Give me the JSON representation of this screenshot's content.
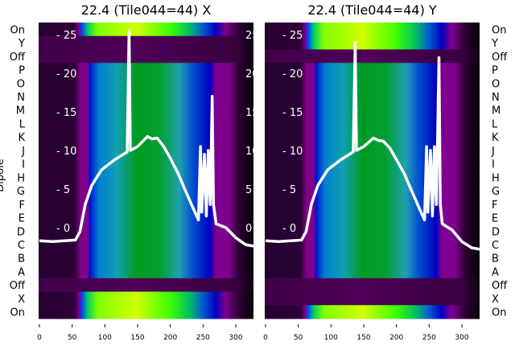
{
  "y_axis_label": "Dipole",
  "chart_data": [
    {
      "type": "heatmap",
      "title": "22.4 (Tile044=44) X",
      "row_labels": [
        "On",
        "Y",
        "Off",
        "P",
        "O",
        "N",
        "M",
        "L",
        "K",
        "J",
        "I",
        "H",
        "G",
        "F",
        "E",
        "D",
        "C",
        "B",
        "A",
        "Off",
        "X",
        "On"
      ],
      "row_profiles": [
        "bright",
        "off",
        "off",
        "dipole",
        "dipole",
        "dipole",
        "dipole",
        "dipole",
        "dipole",
        "dipole",
        "dipole",
        "dipole",
        "dipole",
        "dipole",
        "dipole",
        "dipole",
        "dipole",
        "dipole",
        "dipole",
        "off",
        "bright",
        "bright"
      ],
      "xlim": [
        0,
        328
      ],
      "x_ticks": [
        0,
        50,
        100,
        150,
        200,
        250,
        300
      ],
      "overlay_y_ticks": [
        0,
        5,
        10,
        15,
        20,
        25
      ],
      "overlay_line": [
        [
          0,
          -1.7
        ],
        [
          20,
          -1.8
        ],
        [
          55,
          -1.6
        ],
        [
          62,
          -0.5
        ],
        [
          70,
          3
        ],
        [
          80,
          5.5
        ],
        [
          95,
          7.5
        ],
        [
          115,
          8.8
        ],
        [
          134,
          9.8
        ],
        [
          137,
          25.5
        ],
        [
          139,
          10
        ],
        [
          150,
          10.5
        ],
        [
          165,
          11.8
        ],
        [
          172,
          11.5
        ],
        [
          180,
          11.6
        ],
        [
          190,
          10.5
        ],
        [
          200,
          9
        ],
        [
          212,
          7
        ],
        [
          222,
          5
        ],
        [
          235,
          2.5
        ],
        [
          243,
          1
        ],
        [
          246,
          10.5
        ],
        [
          248,
          2
        ],
        [
          252,
          9.5
        ],
        [
          255,
          1.5
        ],
        [
          258,
          10
        ],
        [
          261,
          3
        ],
        [
          264,
          17
        ],
        [
          266,
          3
        ],
        [
          270,
          0.5
        ],
        [
          285,
          0
        ],
        [
          300,
          -1.3
        ],
        [
          315,
          -2.2
        ],
        [
          328,
          -2.4
        ]
      ]
    },
    {
      "type": "heatmap",
      "title": "22.4 (Tile044=44) Y",
      "row_labels": [
        "On",
        "Y",
        "Off",
        "P",
        "O",
        "N",
        "M",
        "L",
        "K",
        "J",
        "I",
        "H",
        "G",
        "F",
        "E",
        "D",
        "C",
        "B",
        "A",
        "Off",
        "X",
        "On"
      ],
      "row_profiles": [
        "bright",
        "bright",
        "off",
        "dipole",
        "dipole",
        "dipole",
        "dipole",
        "dipole",
        "dipole",
        "dipole",
        "dipole",
        "dipole",
        "dipole",
        "dipole",
        "dipole",
        "dipole",
        "dipole",
        "dipole",
        "dipole",
        "off",
        "off",
        "bright"
      ],
      "xlim": [
        0,
        328
      ],
      "x_ticks": [
        0,
        50,
        100,
        150,
        200,
        250,
        300
      ],
      "overlay_y_ticks": [
        0,
        5,
        10,
        15,
        20,
        25
      ],
      "overlay_line": [
        [
          0,
          -1.7
        ],
        [
          20,
          -1.8
        ],
        [
          55,
          -1.6
        ],
        [
          62,
          -0.5
        ],
        [
          70,
          3
        ],
        [
          80,
          5.5
        ],
        [
          95,
          7.5
        ],
        [
          115,
          8.8
        ],
        [
          134,
          9.8
        ],
        [
          137,
          24
        ],
        [
          139,
          10
        ],
        [
          150,
          10.5
        ],
        [
          165,
          11.6
        ],
        [
          172,
          11.3
        ],
        [
          180,
          11.2
        ],
        [
          190,
          10.3
        ],
        [
          200,
          8.8
        ],
        [
          212,
          7
        ],
        [
          222,
          5
        ],
        [
          235,
          2.5
        ],
        [
          243,
          1
        ],
        [
          246,
          10.5
        ],
        [
          248,
          2
        ],
        [
          252,
          10
        ],
        [
          255,
          1.5
        ],
        [
          258,
          10.5
        ],
        [
          261,
          3
        ],
        [
          265,
          22
        ],
        [
          267,
          3
        ],
        [
          270,
          0.5
        ],
        [
          285,
          -0.3
        ],
        [
          300,
          -1.8
        ],
        [
          315,
          -2.6
        ],
        [
          328,
          -2.8
        ]
      ]
    }
  ],
  "colormap_profiles": {
    "dipole": [
      [
        0,
        "#250030"
      ],
      [
        55,
        "#2a0035"
      ],
      [
        64,
        "#800088"
      ],
      [
        75,
        "#800088"
      ],
      [
        78,
        "#0010d0"
      ],
      [
        92,
        "#0080d0"
      ],
      [
        120,
        "#10a0b0"
      ],
      [
        150,
        "#009a20"
      ],
      [
        185,
        "#00a030"
      ],
      [
        215,
        "#20a0b0"
      ],
      [
        235,
        "#0050d0"
      ],
      [
        262,
        "#0000c0"
      ],
      [
        270,
        "#800090"
      ],
      [
        290,
        "#800090"
      ],
      [
        305,
        "#300038"
      ],
      [
        328,
        "#050008"
      ]
    ],
    "bright": [
      [
        0,
        "#250030"
      ],
      [
        55,
        "#300038"
      ],
      [
        62,
        "#800090"
      ],
      [
        66,
        "#0040ff"
      ],
      [
        75,
        "#00d060"
      ],
      [
        90,
        "#80ff00"
      ],
      [
        150,
        "#d0ff00"
      ],
      [
        200,
        "#40ff00"
      ],
      [
        230,
        "#00c060"
      ],
      [
        250,
        "#0060d0"
      ],
      [
        270,
        "#0000c0"
      ],
      [
        285,
        "#800090"
      ],
      [
        305,
        "#300038"
      ],
      [
        328,
        "#050008"
      ]
    ],
    "off": [
      [
        0,
        "#400048"
      ],
      [
        150,
        "#500058"
      ],
      [
        300,
        "#380040"
      ],
      [
        328,
        "#100012"
      ]
    ]
  }
}
